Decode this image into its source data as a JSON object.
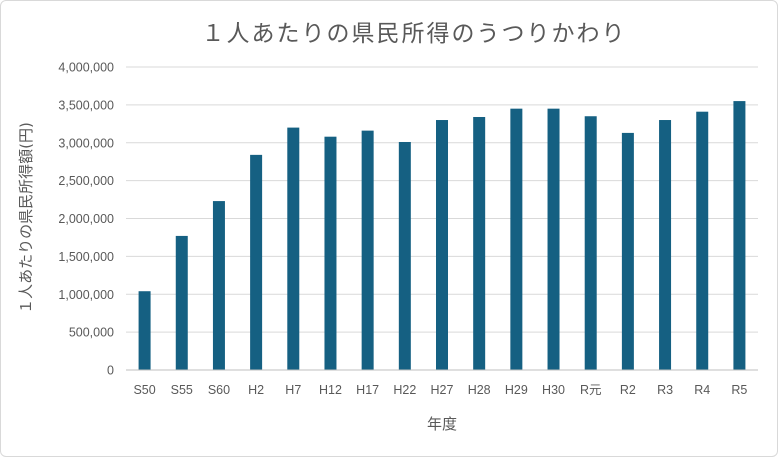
{
  "chart_data": {
    "type": "bar",
    "title": "１人あたりの県民所得のうつりかわり",
    "xlabel": "年度",
    "ylabel": "１人あたりの県民所得額(円)",
    "categories": [
      "S50",
      "S55",
      "S60",
      "H2",
      "H7",
      "H12",
      "H17",
      "H22",
      "H27",
      "H28",
      "H29",
      "H30",
      "R元",
      "R2",
      "R3",
      "R4",
      "R5"
    ],
    "series": [
      {
        "values": [
          1040000,
          1770000,
          2230000,
          2840000,
          3200000,
          3080000,
          3160000,
          3010000,
          3300000,
          3340000,
          3450000,
          3450000,
          3350000,
          3130000,
          3300000,
          3410000,
          3550000
        ]
      }
    ],
    "ylim": [
      0,
      4000000
    ],
    "yticks": [
      0,
      500000,
      1000000,
      1500000,
      2000000,
      2500000,
      3000000,
      3500000,
      4000000
    ],
    "ytick_labels": [
      "0",
      "500,000",
      "1,000,000",
      "1,500,000",
      "2,000,000",
      "2,500,000",
      "3,000,000",
      "3,500,000",
      "4,000,000"
    ],
    "grid": true,
    "bar_color": "#156082"
  }
}
